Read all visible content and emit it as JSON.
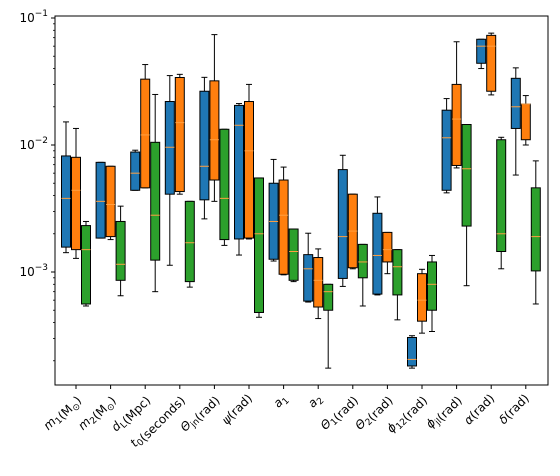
{
  "chart_data": {
    "type": "box",
    "title": "",
    "xlabel": "",
    "ylabel": "",
    "yscale": "log",
    "ylim": [
      0.00013,
      0.1
    ],
    "yticks": [
      {
        "value": 0.001,
        "base": "10",
        "exp": "−3"
      },
      {
        "value": 0.01,
        "base": "10",
        "exp": "−2"
      },
      {
        "value": 0.1,
        "base": "10",
        "exp": "−1"
      }
    ],
    "grid": false,
    "legend": "none",
    "series_colors": [
      "#1f77b4",
      "#ff7f0e",
      "#2ca02c"
    ],
    "median_color": "#ff9f40",
    "categories": [
      {
        "base": "m",
        "sub": "1",
        "unit": "(M",
        "unit_sub": "⊙",
        "unit_end": ")"
      },
      {
        "base": "m",
        "sub": "2",
        "unit": "(M",
        "unit_sub": "⊙",
        "unit_end": ")"
      },
      {
        "base": "d",
        "sub": "L",
        "unit": "(Mpc)"
      },
      {
        "base": "t",
        "sub": "0",
        "unit": "(seconds)"
      },
      {
        "base": "Θ",
        "sub": "jn",
        "unit": "(rad)"
      },
      {
        "base": "ψ",
        "sub": "",
        "unit": "(rad)"
      },
      {
        "base": "a",
        "sub": "1",
        "unit": ""
      },
      {
        "base": "a",
        "sub": "2",
        "unit": ""
      },
      {
        "base": "Θ",
        "sub": "1",
        "unit": "(rad)"
      },
      {
        "base": "Θ",
        "sub": "2",
        "unit": "(rad)"
      },
      {
        "base": "ϕ",
        "sub": "12",
        "unit": "(rad)"
      },
      {
        "base": "ϕ",
        "sub": "jl",
        "unit": "(rad)"
      },
      {
        "base": "α",
        "sub": "",
        "unit": "(rad)"
      },
      {
        "base": "δ",
        "sub": "",
        "unit": "(rad)"
      }
    ],
    "boxes": [
      [
        {
          "wlo": 0.00142,
          "q1": 0.00157,
          "med": 0.0038,
          "q3": 0.0082,
          "whi": 0.0152
        },
        {
          "wlo": 0.00185,
          "q1": 0.00185,
          "med": 0.0036,
          "q3": 0.0073,
          "whi": 0.0073
        },
        {
          "wlo": 0.0044,
          "q1": 0.0044,
          "med": 0.006,
          "q3": 0.0088,
          "whi": 0.0091
        },
        {
          "wlo": 0.00113,
          "q1": 0.0041,
          "med": 0.0096,
          "q3": 0.022,
          "whi": 0.0352
        },
        {
          "wlo": 0.00262,
          "q1": 0.0037,
          "med": 0.0068,
          "q3": 0.0265,
          "whi": 0.0341
        },
        {
          "wlo": 0.00136,
          "q1": 0.00182,
          "med": 0.0143,
          "q3": 0.0205,
          "whi": 0.0212
        },
        {
          "wlo": 0.00122,
          "q1": 0.00126,
          "med": 0.0025,
          "q3": 0.005,
          "whi": 0.0077
        },
        {
          "wlo": 0.00058,
          "q1": 0.00059,
          "med": 0.00106,
          "q3": 0.00137,
          "whi": 0.00202
        },
        {
          "wlo": 0.00077,
          "q1": 0.00089,
          "med": 0.0019,
          "q3": 0.0064,
          "whi": 0.0083
        },
        {
          "wlo": 0.00066,
          "q1": 0.00067,
          "med": 0.00135,
          "q3": 0.0029,
          "whi": 0.0039
        },
        {
          "wlo": 0.000175,
          "q1": 0.000182,
          "med": 0.000205,
          "q3": 0.000305,
          "whi": 0.000315
        },
        {
          "wlo": 0.0042,
          "q1": 0.0044,
          "med": 0.0114,
          "q3": 0.0188,
          "whi": 0.0232
        },
        {
          "wlo": 0.04,
          "q1": 0.044,
          "med": 0.06,
          "q3": 0.068,
          "whi": 0.068
        },
        {
          "wlo": 0.0058,
          "q1": 0.0135,
          "med": 0.02,
          "q3": 0.0335,
          "whi": 0.0405
        }
      ],
      [
        {
          "wlo": 0.00128,
          "q1": 0.0015,
          "med": 0.0044,
          "q3": 0.008,
          "whi": 0.0135
        },
        {
          "wlo": 0.0018,
          "q1": 0.0019,
          "med": 0.0034,
          "q3": 0.0068,
          "whi": 0.0068
        },
        {
          "wlo": 0.0046,
          "q1": 0.0046,
          "med": 0.012,
          "q3": 0.033,
          "whi": 0.043
        },
        {
          "wlo": 0.0041,
          "q1": 0.0043,
          "med": 0.015,
          "q3": 0.034,
          "whi": 0.036
        },
        {
          "wlo": 0.0036,
          "q1": 0.0053,
          "med": 0.011,
          "q3": 0.032,
          "whi": 0.074
        },
        {
          "wlo": 0.00182,
          "q1": 0.00185,
          "med": 0.009,
          "q3": 0.022,
          "whi": 0.03
        },
        {
          "wlo": 0.00095,
          "q1": 0.00096,
          "med": 0.0028,
          "q3": 0.0053,
          "whi": 0.0067
        },
        {
          "wlo": 0.00043,
          "q1": 0.00053,
          "med": 0.00086,
          "q3": 0.0013,
          "whi": 0.00152
        },
        {
          "wlo": 0.00106,
          "q1": 0.00108,
          "med": 0.0021,
          "q3": 0.0041,
          "whi": 0.0041
        },
        {
          "wlo": 0.00097,
          "q1": 0.0012,
          "med": 0.0015,
          "q3": 0.00205,
          "whi": 0.00205
        },
        {
          "wlo": 0.00033,
          "q1": 0.00041,
          "med": 0.0006,
          "q3": 0.00097,
          "whi": 0.00105
        },
        {
          "wlo": 0.0066,
          "q1": 0.0069,
          "med": 0.016,
          "q3": 0.03,
          "whi": 0.065
        },
        {
          "wlo": 0.0248,
          "q1": 0.0265,
          "med": 0.06,
          "q3": 0.073,
          "whi": 0.076
        },
        {
          "wlo": 0.01,
          "q1": 0.011,
          "med": 0.021,
          "q3": 0.021,
          "whi": 0.0245
        }
      ],
      [
        {
          "wlo": 0.00054,
          "q1": 0.00056,
          "med": 0.0015,
          "q3": 0.00232,
          "whi": 0.0025
        },
        {
          "wlo": 0.00065,
          "q1": 0.00086,
          "med": 0.00115,
          "q3": 0.0025,
          "whi": 0.0033
        },
        {
          "wlo": 0.0007,
          "q1": 0.00124,
          "med": 0.0028,
          "q3": 0.0105,
          "whi": 0.025
        },
        {
          "wlo": 0.00076,
          "q1": 0.00084,
          "med": 0.0017,
          "q3": 0.0036,
          "whi": 0.0036
        },
        {
          "wlo": 0.00162,
          "q1": 0.0018,
          "med": 0.0038,
          "q3": 0.0133,
          "whi": 0.0133
        },
        {
          "wlo": 0.00044,
          "q1": 0.00048,
          "med": 0.002,
          "q3": 0.0055,
          "whi": 0.0055
        },
        {
          "wlo": 0.00084,
          "q1": 0.00086,
          "med": 0.00145,
          "q3": 0.00218,
          "whi": 0.00218
        },
        {
          "wlo": 0.000175,
          "q1": 0.0005,
          "med": 0.0007,
          "q3": 0.0008,
          "whi": 0.0008
        },
        {
          "wlo": 0.00054,
          "q1": 0.0009,
          "med": 0.0012,
          "q3": 0.00165,
          "whi": 0.00165
        },
        {
          "wlo": 0.00042,
          "q1": 0.00066,
          "med": 0.0011,
          "q3": 0.0015,
          "whi": 0.0015
        },
        {
          "wlo": 0.00034,
          "q1": 0.0005,
          "med": 0.0008,
          "q3": 0.0012,
          "whi": 0.00135
        },
        {
          "wlo": 0.00078,
          "q1": 0.0023,
          "med": 0.0065,
          "q3": 0.0145,
          "whi": 0.0145
        },
        {
          "wlo": 0.00106,
          "q1": 0.00145,
          "med": 0.002,
          "q3": 0.011,
          "whi": 0.0115
        },
        {
          "wlo": 0.00056,
          "q1": 0.00102,
          "med": 0.0019,
          "q3": 0.0046,
          "whi": 0.0075
        }
      ]
    ]
  }
}
